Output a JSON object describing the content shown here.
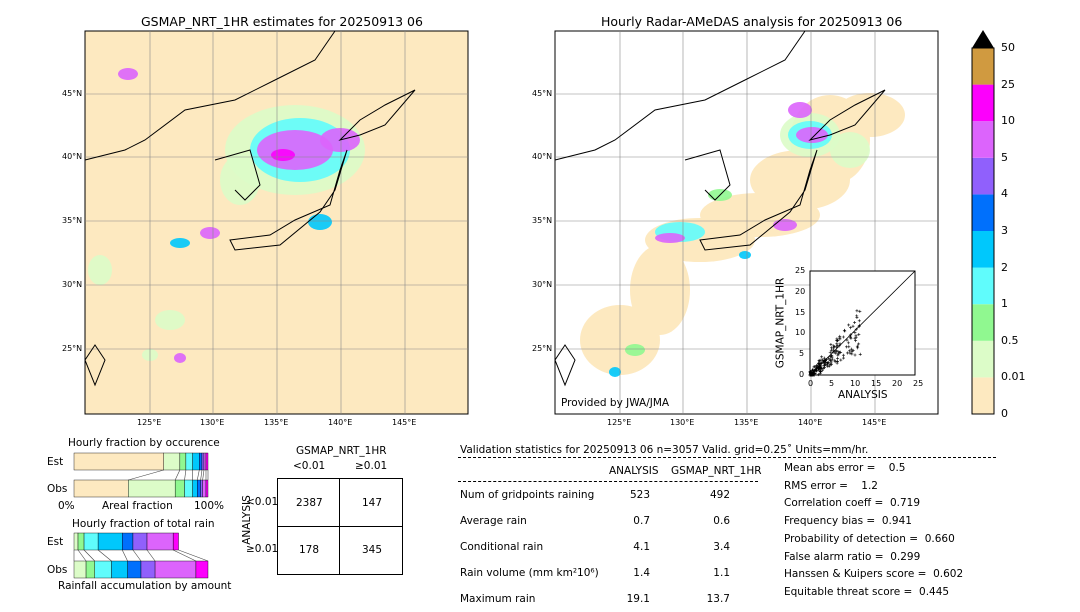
{
  "colors": {
    "bins": [
      "#fde9c0",
      "#dcfcc8",
      "#90f890",
      "#60fcfc",
      "#00c8fc",
      "#0070fc",
      "#9060fc",
      "#dc64fc",
      "#fc00fc",
      "#d09a40"
    ]
  },
  "left_map": {
    "title": "GSMAP_NRT_1HR estimates for 20250913 06"
  },
  "right_map": {
    "title": "Hourly Radar-AMeDAS analysis for 20250913 06",
    "credit": "Provided by JWA/JMA"
  },
  "lat_ticks": [
    "45°N",
    "40°N",
    "35°N",
    "30°N",
    "25°N"
  ],
  "lon_ticks": [
    "125°E",
    "130°E",
    "135°E",
    "140°E",
    "145°E"
  ],
  "colorbar": {
    "labels": [
      "50",
      "25",
      "10",
      "5",
      "4",
      "3",
      "2",
      "1",
      "0.5",
      "0.01",
      "0"
    ]
  },
  "scatter": {
    "xlabel": "ANALYSIS",
    "ylabel": "GSMAP_NRT_1HR",
    "ticks": [
      "0",
      "5",
      "10",
      "15",
      "20",
      "25"
    ]
  },
  "fraction": {
    "occ_title": "Hourly fraction by occurence",
    "est": "Est",
    "obs": "Obs",
    "x0": "0%",
    "x1": "100%",
    "xlabel": "Areal fraction",
    "rain_title": "Hourly fraction of total rain",
    "rain_xlabel": "Rainfall accumulation by amount",
    "occ_est": [
      0.67,
      0.12,
      0.045,
      0.05,
      0.05,
      0.02,
      0.015,
      0.015,
      0.015
    ],
    "occ_obs": [
      0.405,
      0.35,
      0.07,
      0.06,
      0.035,
      0.025,
      0.015,
      0.025,
      0.015
    ],
    "rain_est": [
      0,
      0.03,
      0.045,
      0.105,
      0.18,
      0.08,
      0.105,
      0.195,
      0.04
    ],
    "rain_obs": [
      0,
      0.09,
      0.065,
      0.125,
      0.12,
      0.1,
      0.105,
      0.305,
      0.09
    ]
  },
  "contingency": {
    "title": "GSMAP_NRT_1HR",
    "col1": "<0.01",
    "col2": "≥0.01",
    "ylabel": "ANALYSIS",
    "row1": "<0.01",
    "row2": "≥0.01",
    "a": "2387",
    "b": "147",
    "c": "178",
    "d": "345"
  },
  "stats": {
    "header": "Validation statistics for 20250913 06  n=3057 Valid. grid=0.25˚ Units=mm/hr.",
    "col_a": "ANALYSIS",
    "col_g": "GSMAP_NRT_1HR",
    "rows": [
      {
        "label": "Num of gridpoints raining",
        "a": "523",
        "g": "492"
      },
      {
        "label": "Average rain",
        "a": "0.7",
        "g": "0.6"
      },
      {
        "label": "Conditional rain",
        "a": "4.1",
        "g": "3.4"
      },
      {
        "label": "Rain volume (mm km²10⁶)",
        "a": "1.4",
        "g": "1.1"
      },
      {
        "label": "Maximum rain",
        "a": "19.1",
        "g": "13.7"
      }
    ],
    "scores": [
      "Mean abs error =    0.5",
      "RMS error =    1.2",
      "Correlation coeff =  0.719",
      "Frequency bias =  0.941",
      "Probability of detection =  0.660",
      "False alarm ratio =  0.299",
      "Hanssen & Kuipers score =  0.602",
      "Equitable threat score =  0.445"
    ]
  }
}
